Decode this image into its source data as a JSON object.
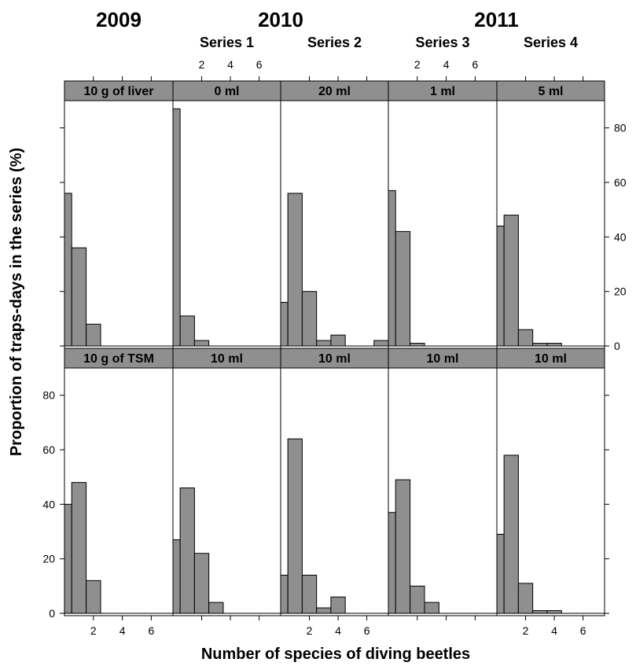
{
  "header": {
    "years": [
      {
        "text": "2009",
        "col_start": 0,
        "col_end": 0
      },
      {
        "text": "2010",
        "col_start": 1,
        "col_end": 2
      },
      {
        "text": "2011",
        "col_start": 3,
        "col_end": 4
      }
    ],
    "series_labels": [
      "",
      "Series 1",
      "Series 2",
      "Series 3",
      "Series 4"
    ]
  },
  "chart_data": {
    "type": "bar",
    "xlabel": "Number of species of diving beetles",
    "ylabel": "Proportion of traps-days in the series (%)",
    "xlim": [
      0,
      7.5
    ],
    "ylim": [
      0,
      90
    ],
    "x_ticks": [
      2,
      4,
      6
    ],
    "y_ticks": [
      0,
      20,
      40,
      60,
      80
    ],
    "bin_edges": [
      0,
      0.5,
      1.5,
      2.5,
      3.5,
      4.5,
      5.5,
      6.5,
      7.5
    ],
    "strip_color": "#8f8f8f",
    "bar_color": "#8f8f8f",
    "panels": [
      {
        "row": 0,
        "col": 0,
        "label": "10 g of liver",
        "values": [
          56,
          36,
          8,
          0,
          0,
          0,
          0,
          0
        ]
      },
      {
        "row": 0,
        "col": 1,
        "label": "0 ml",
        "values": [
          87,
          11,
          2,
          0,
          0,
          0,
          0,
          0
        ]
      },
      {
        "row": 0,
        "col": 2,
        "label": "20 ml",
        "values": [
          16,
          56,
          20,
          2,
          4,
          0,
          0,
          2
        ]
      },
      {
        "row": 0,
        "col": 3,
        "label": "1 ml",
        "values": [
          57,
          42,
          1,
          0,
          0,
          0,
          0,
          0
        ]
      },
      {
        "row": 0,
        "col": 4,
        "label": "5 ml",
        "values": [
          44,
          48,
          6,
          1,
          1,
          0,
          0,
          0
        ]
      },
      {
        "row": 1,
        "col": 0,
        "label": "10 g of TSM",
        "values": [
          40,
          48,
          12,
          0,
          0,
          0,
          0,
          0
        ]
      },
      {
        "row": 1,
        "col": 1,
        "label": "10 ml",
        "values": [
          27,
          46,
          22,
          4,
          0,
          0,
          0,
          0
        ]
      },
      {
        "row": 1,
        "col": 2,
        "label": "10 ml",
        "values": [
          14,
          64,
          14,
          2,
          6,
          0,
          0,
          0
        ]
      },
      {
        "row": 1,
        "col": 3,
        "label": "10 ml",
        "values": [
          37,
          49,
          10,
          4,
          0,
          0,
          0,
          0
        ]
      },
      {
        "row": 1,
        "col": 4,
        "label": "10 ml",
        "values": [
          29,
          58,
          11,
          1,
          1,
          0,
          0,
          0
        ]
      }
    ],
    "tick_sides": {
      "x_ticks_top_labeled_cols": [
        1,
        3
      ],
      "x_ticks_bottom_labeled_cols": [
        0,
        2,
        4
      ],
      "y_labels_left_rows": [
        1
      ],
      "y_labels_right_rows": [
        0
      ]
    }
  }
}
